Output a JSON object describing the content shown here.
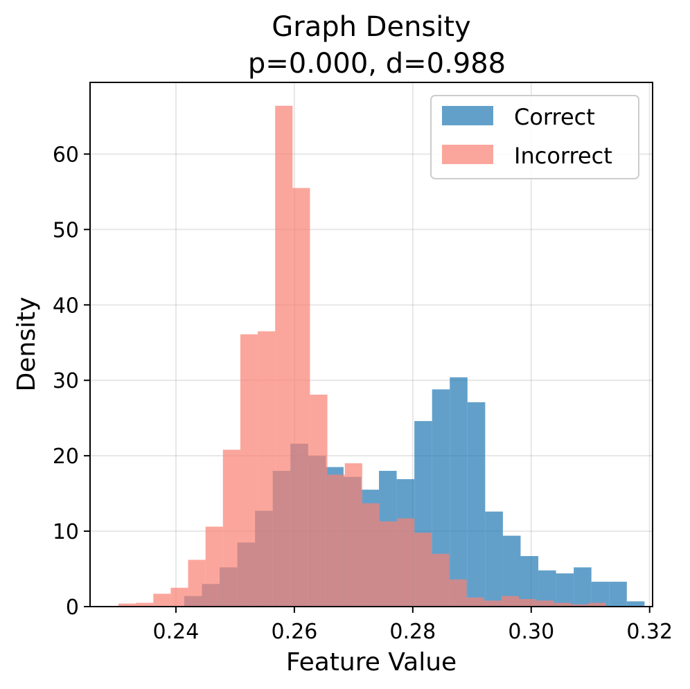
{
  "chart_data": {
    "type": "histogram",
    "title": "Graph Density",
    "subtitle": "p=0.000, d=0.988",
    "xlabel": "Feature Value",
    "ylabel": "Density",
    "xlim": [
      0.2255,
      0.3205
    ],
    "ylim": [
      0,
      69.5
    ],
    "xticks": [
      0.24,
      0.26,
      0.28,
      0.3,
      0.32
    ],
    "xtick_labels": [
      "0.24",
      "0.26",
      "0.28",
      "0.30",
      "0.32"
    ],
    "yticks": [
      0,
      10,
      20,
      30,
      40,
      50,
      60
    ],
    "ytick_labels": [
      "0",
      "10",
      "20",
      "30",
      "40",
      "50",
      "60"
    ],
    "grid": true,
    "legend_position": "top-right",
    "series": [
      {
        "name": "Correct",
        "color": "#1f77b4",
        "alpha": 0.7,
        "bin_start": 0.2414,
        "bin_width": 0.00299,
        "values": [
          1.4,
          3.0,
          5.2,
          8.5,
          12.7,
          18.0,
          21.6,
          20.0,
          18.5,
          17.2,
          15.5,
          18.0,
          16.9,
          24.6,
          28.8,
          30.4,
          27.1,
          12.6,
          9.4,
          6.7,
          4.8,
          4.4,
          5.2,
          3.3,
          3.3,
          0.7
        ]
      },
      {
        "name": "Incorrect",
        "color": "#fa8072",
        "alpha": 0.7,
        "bin_start": 0.2303,
        "bin_width": 0.00294,
        "values": [
          0.4,
          0.5,
          1.7,
          2.5,
          6.2,
          10.6,
          20.8,
          36.1,
          36.5,
          66.4,
          55.5,
          28.1,
          17.5,
          19.0,
          13.7,
          11.3,
          11.7,
          9.8,
          7.0,
          3.6,
          1.2,
          0.8,
          1.4,
          1.0,
          0.8,
          0.5,
          0.3,
          0.5
        ]
      }
    ]
  }
}
